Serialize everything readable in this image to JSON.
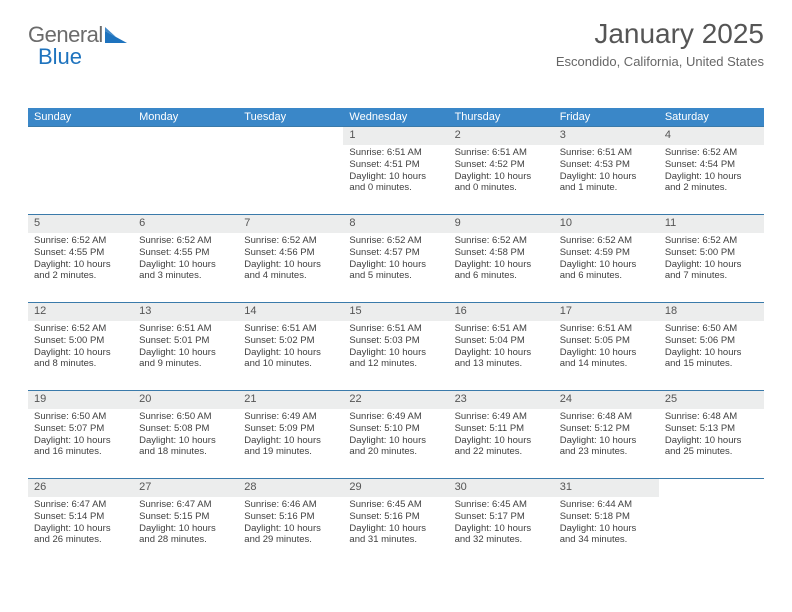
{
  "logo": {
    "text_general": "General",
    "text_blue": "Blue",
    "color_gray": "#6b6b6b",
    "color_blue": "#1e73be"
  },
  "header": {
    "title": "January 2025",
    "location": "Escondido, California, United States",
    "title_fontsize": 28,
    "location_fontsize": 13
  },
  "calendar": {
    "header_bg": "#3a87c8",
    "header_color": "#ffffff",
    "border_color": "#3a7aaa",
    "daynum_bg": "#eceded",
    "text_color": "#404040",
    "columns": 7,
    "rows": 5,
    "day_names": [
      "Sunday",
      "Monday",
      "Tuesday",
      "Wednesday",
      "Thursday",
      "Friday",
      "Saturday"
    ],
    "days": [
      {
        "n": "",
        "empty": true
      },
      {
        "n": "",
        "empty": true
      },
      {
        "n": "",
        "empty": true
      },
      {
        "n": "1",
        "sunrise": "6:51 AM",
        "sunset": "4:51 PM",
        "daylight_h": "10",
        "daylight_m": "0"
      },
      {
        "n": "2",
        "sunrise": "6:51 AM",
        "sunset": "4:52 PM",
        "daylight_h": "10",
        "daylight_m": "0"
      },
      {
        "n": "3",
        "sunrise": "6:51 AM",
        "sunset": "4:53 PM",
        "daylight_h": "10",
        "daylight_m": "1"
      },
      {
        "n": "4",
        "sunrise": "6:52 AM",
        "sunset": "4:54 PM",
        "daylight_h": "10",
        "daylight_m": "2"
      },
      {
        "n": "5",
        "sunrise": "6:52 AM",
        "sunset": "4:55 PM",
        "daylight_h": "10",
        "daylight_m": "2"
      },
      {
        "n": "6",
        "sunrise": "6:52 AM",
        "sunset": "4:55 PM",
        "daylight_h": "10",
        "daylight_m": "3"
      },
      {
        "n": "7",
        "sunrise": "6:52 AM",
        "sunset": "4:56 PM",
        "daylight_h": "10",
        "daylight_m": "4"
      },
      {
        "n": "8",
        "sunrise": "6:52 AM",
        "sunset": "4:57 PM",
        "daylight_h": "10",
        "daylight_m": "5"
      },
      {
        "n": "9",
        "sunrise": "6:52 AM",
        "sunset": "4:58 PM",
        "daylight_h": "10",
        "daylight_m": "6"
      },
      {
        "n": "10",
        "sunrise": "6:52 AM",
        "sunset": "4:59 PM",
        "daylight_h": "10",
        "daylight_m": "6"
      },
      {
        "n": "11",
        "sunrise": "6:52 AM",
        "sunset": "5:00 PM",
        "daylight_h": "10",
        "daylight_m": "7"
      },
      {
        "n": "12",
        "sunrise": "6:52 AM",
        "sunset": "5:00 PM",
        "daylight_h": "10",
        "daylight_m": "8"
      },
      {
        "n": "13",
        "sunrise": "6:51 AM",
        "sunset": "5:01 PM",
        "daylight_h": "10",
        "daylight_m": "9"
      },
      {
        "n": "14",
        "sunrise": "6:51 AM",
        "sunset": "5:02 PM",
        "daylight_h": "10",
        "daylight_m": "10"
      },
      {
        "n": "15",
        "sunrise": "6:51 AM",
        "sunset": "5:03 PM",
        "daylight_h": "10",
        "daylight_m": "12"
      },
      {
        "n": "16",
        "sunrise": "6:51 AM",
        "sunset": "5:04 PM",
        "daylight_h": "10",
        "daylight_m": "13"
      },
      {
        "n": "17",
        "sunrise": "6:51 AM",
        "sunset": "5:05 PM",
        "daylight_h": "10",
        "daylight_m": "14"
      },
      {
        "n": "18",
        "sunrise": "6:50 AM",
        "sunset": "5:06 PM",
        "daylight_h": "10",
        "daylight_m": "15"
      },
      {
        "n": "19",
        "sunrise": "6:50 AM",
        "sunset": "5:07 PM",
        "daylight_h": "10",
        "daylight_m": "16"
      },
      {
        "n": "20",
        "sunrise": "6:50 AM",
        "sunset": "5:08 PM",
        "daylight_h": "10",
        "daylight_m": "18"
      },
      {
        "n": "21",
        "sunrise": "6:49 AM",
        "sunset": "5:09 PM",
        "daylight_h": "10",
        "daylight_m": "19"
      },
      {
        "n": "22",
        "sunrise": "6:49 AM",
        "sunset": "5:10 PM",
        "daylight_h": "10",
        "daylight_m": "20"
      },
      {
        "n": "23",
        "sunrise": "6:49 AM",
        "sunset": "5:11 PM",
        "daylight_h": "10",
        "daylight_m": "22"
      },
      {
        "n": "24",
        "sunrise": "6:48 AM",
        "sunset": "5:12 PM",
        "daylight_h": "10",
        "daylight_m": "23"
      },
      {
        "n": "25",
        "sunrise": "6:48 AM",
        "sunset": "5:13 PM",
        "daylight_h": "10",
        "daylight_m": "25"
      },
      {
        "n": "26",
        "sunrise": "6:47 AM",
        "sunset": "5:14 PM",
        "daylight_h": "10",
        "daylight_m": "26"
      },
      {
        "n": "27",
        "sunrise": "6:47 AM",
        "sunset": "5:15 PM",
        "daylight_h": "10",
        "daylight_m": "28"
      },
      {
        "n": "28",
        "sunrise": "6:46 AM",
        "sunset": "5:16 PM",
        "daylight_h": "10",
        "daylight_m": "29"
      },
      {
        "n": "29",
        "sunrise": "6:45 AM",
        "sunset": "5:16 PM",
        "daylight_h": "10",
        "daylight_m": "31"
      },
      {
        "n": "30",
        "sunrise": "6:45 AM",
        "sunset": "5:17 PM",
        "daylight_h": "10",
        "daylight_m": "32"
      },
      {
        "n": "31",
        "sunrise": "6:44 AM",
        "sunset": "5:18 PM",
        "daylight_h": "10",
        "daylight_m": "34"
      },
      {
        "n": "",
        "empty": true
      }
    ],
    "labels": {
      "sunrise": "Sunrise:",
      "sunset": "Sunset:",
      "daylight_prefix": "Daylight:",
      "hours_word": "hours",
      "and_word": "and",
      "minutes_word": "minutes.",
      "minute_word": "minute."
    }
  }
}
